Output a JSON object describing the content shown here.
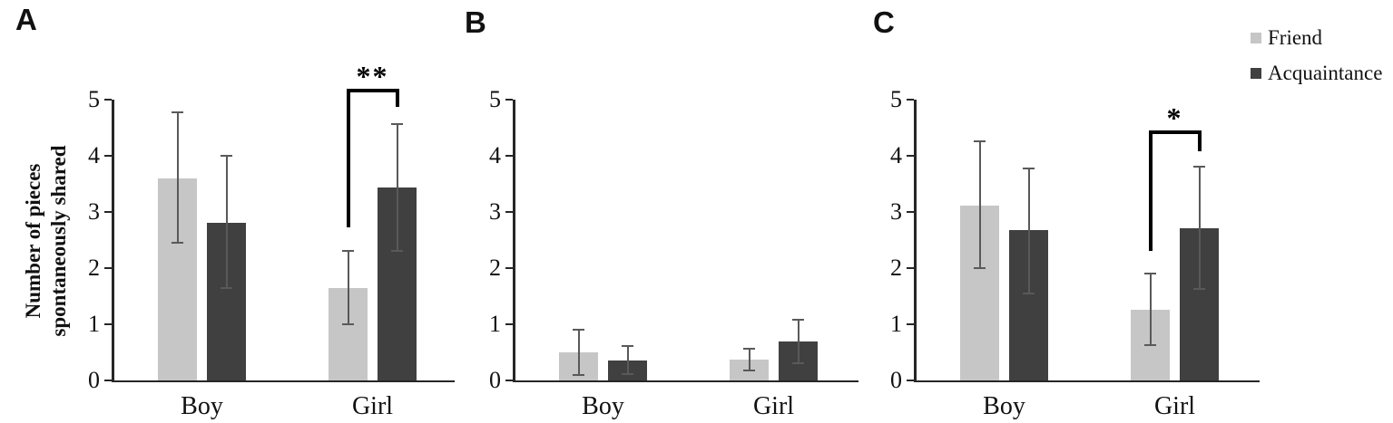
{
  "figure": {
    "background": "#ffffff",
    "axis_color": "#262626",
    "error_bar_color": "#595959"
  },
  "y_axis_title": {
    "line1": "Number of pieces",
    "line2": "spontaneously shared"
  },
  "legend": {
    "items": [
      {
        "label": "Friend",
        "color": "#c6c6c6"
      },
      {
        "label": "Acquaintance",
        "color": "#404040"
      }
    ]
  },
  "chart_data": [
    {
      "type": "bar",
      "panel_label": "A",
      "title": "",
      "xlabel": "",
      "ylabel": "Number of pieces spontaneously shared",
      "ylim": [
        0,
        5
      ],
      "yticks": [
        0,
        1,
        2,
        3,
        4,
        5
      ],
      "grid": false,
      "categories": [
        "Boy",
        "Girl"
      ],
      "series": [
        {
          "name": "Friend",
          "color": "#c6c6c6",
          "values": [
            3.6,
            1.65
          ],
          "error_low": [
            2.45,
            1.0
          ],
          "error_high": [
            4.78,
            2.3
          ]
        },
        {
          "name": "Acquaintance",
          "color": "#404040",
          "values": [
            2.8,
            3.43
          ],
          "error_low": [
            1.65,
            2.3
          ],
          "error_high": [
            4.0,
            4.56
          ]
        }
      ],
      "significance": {
        "label": "**",
        "category_index": 1,
        "top_value": 5.2,
        "left_leg_bottom": 2.73,
        "right_leg_bottom": 4.87
      }
    },
    {
      "type": "bar",
      "panel_label": "B",
      "title": "",
      "xlabel": "",
      "ylabel": "",
      "ylim": [
        0,
        5
      ],
      "yticks": [
        0,
        1,
        2,
        3,
        4,
        5
      ],
      "grid": false,
      "categories": [
        "Boy",
        "Girl"
      ],
      "series": [
        {
          "name": "Friend",
          "color": "#c6c6c6",
          "values": [
            0.5,
            0.37
          ],
          "error_low": [
            0.1,
            0.18
          ],
          "error_high": [
            0.9,
            0.57
          ]
        },
        {
          "name": "Acquaintance",
          "color": "#404040",
          "values": [
            0.35,
            0.7
          ],
          "error_low": [
            0.12,
            0.3
          ],
          "error_high": [
            0.62,
            1.08
          ]
        }
      ],
      "significance": null
    },
    {
      "type": "bar",
      "panel_label": "C",
      "title": "",
      "xlabel": "",
      "ylabel": "",
      "ylim": [
        0,
        5
      ],
      "yticks": [
        0,
        1,
        2,
        3,
        4,
        5
      ],
      "grid": false,
      "categories": [
        "Boy",
        "Girl"
      ],
      "series": [
        {
          "name": "Friend",
          "color": "#c6c6c6",
          "values": [
            3.12,
            1.26
          ],
          "error_low": [
            2.0,
            0.63
          ],
          "error_high": [
            4.26,
            1.9
          ]
        },
        {
          "name": "Acquaintance",
          "color": "#404040",
          "values": [
            2.67,
            2.71
          ],
          "error_low": [
            1.55,
            1.63
          ],
          "error_high": [
            3.78,
            3.8
          ]
        }
      ],
      "significance": {
        "label": "*",
        "category_index": 1,
        "top_value": 4.45,
        "left_leg_bottom": 2.31,
        "right_leg_bottom": 4.08
      }
    }
  ]
}
